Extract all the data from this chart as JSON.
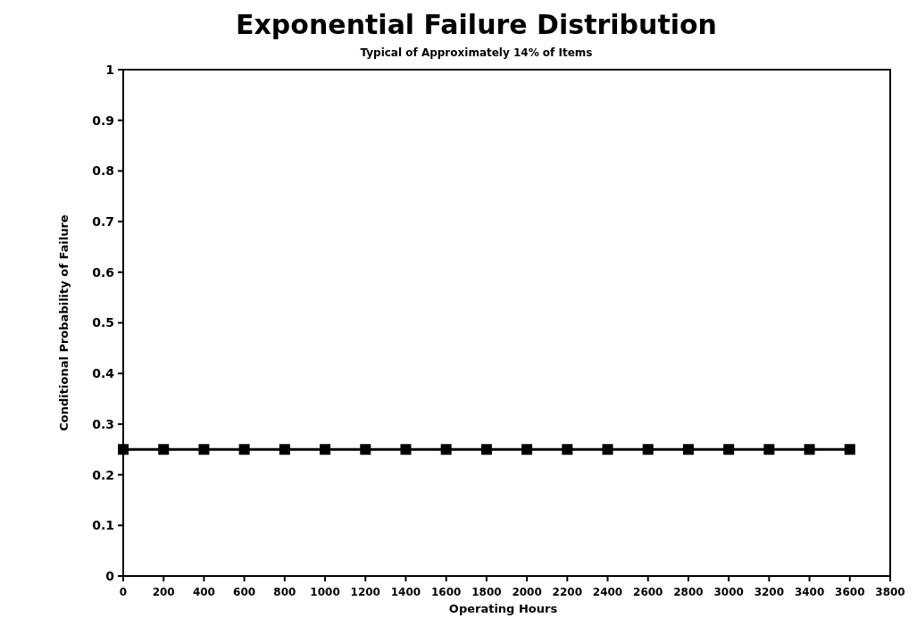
{
  "chart_data": {
    "type": "line",
    "title": "Exponential Failure Distribution",
    "subtitle": "Typical of Approximately 14% of Items",
    "xlabel": "Operating Hours",
    "ylabel": "Conditional Probability of Failure",
    "x": [
      0,
      200,
      400,
      600,
      800,
      1000,
      1200,
      1400,
      1600,
      1800,
      2000,
      2200,
      2400,
      2600,
      2800,
      3000,
      3200,
      3400,
      3600
    ],
    "series": [
      {
        "color": "#000000",
        "values": [
          0.25,
          0.25,
          0.25,
          0.25,
          0.25,
          0.25,
          0.25,
          0.25,
          0.25,
          0.25,
          0.25,
          0.25,
          0.25,
          0.25,
          0.25,
          0.25,
          0.25,
          0.25,
          0.25
        ]
      }
    ],
    "xlim": [
      0,
      3800
    ],
    "xticks": [
      0,
      200,
      400,
      600,
      800,
      1000,
      1200,
      1400,
      1600,
      1800,
      2000,
      2200,
      2400,
      2600,
      2800,
      3000,
      3200,
      3400,
      3600,
      3800
    ],
    "ylim": [
      0,
      1
    ],
    "yticks": [
      0,
      0.1,
      0.2,
      0.3,
      0.4,
      0.5,
      0.6,
      0.7,
      0.8,
      0.9,
      1
    ],
    "marker": "square",
    "line_style": "solid",
    "grid": false
  }
}
